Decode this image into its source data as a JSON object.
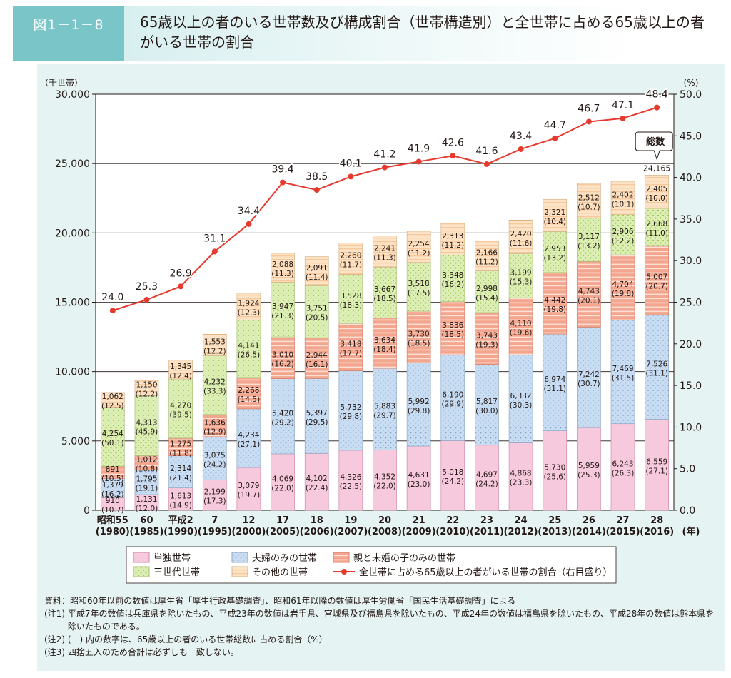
{
  "figure_label": "図1－1－8",
  "title": "65歳以上の者のいる世帯数及び構成割合（世帯構造別）と全世帯に占める65歳以上の者がいる世帯の割合",
  "chart_data": {
    "type": "bar",
    "stacked": true,
    "categories": [
      {
        "era": "昭和55",
        "year": "(1980)"
      },
      {
        "era": "60",
        "year": "(1985)"
      },
      {
        "era": "平成2",
        "year": "(1990)"
      },
      {
        "era": "7",
        "year": "(1995)"
      },
      {
        "era": "12",
        "year": "(2000)"
      },
      {
        "era": "17",
        "year": "(2005)"
      },
      {
        "era": "18",
        "year": "(2006)"
      },
      {
        "era": "19",
        "year": "(2007)"
      },
      {
        "era": "20",
        "year": "(2008)"
      },
      {
        "era": "21",
        "year": "(2009)"
      },
      {
        "era": "22",
        "year": "(2010)"
      },
      {
        "era": "23",
        "year": "(2011)"
      },
      {
        "era": "24",
        "year": "(2012)"
      },
      {
        "era": "25",
        "year": "(2013)"
      },
      {
        "era": "26",
        "year": "(2014)"
      },
      {
        "era": "27",
        "year": "(2015)"
      },
      {
        "era": "28",
        "year": "(2016)"
      }
    ],
    "x_unit": "(年)",
    "y_left": {
      "unit": "（千世帯）",
      "min": 0,
      "max": 30000,
      "ticks": [
        "0",
        "5,000",
        "10,000",
        "15,000",
        "20,000",
        "25,000",
        "30,000"
      ]
    },
    "y_right": {
      "unit": "(%)",
      "min": 0,
      "max": 50,
      "ticks": [
        "0.0",
        "5.0",
        "10.0",
        "15.0",
        "20.0",
        "25.0",
        "30.0",
        "35.0",
        "40.0",
        "45.0",
        "50.0"
      ]
    },
    "series": [
      {
        "name": "単独世帯",
        "color": "#f7c9dc",
        "pattern": "plain",
        "values": [
          910,
          1131,
          1613,
          2199,
          3079,
          4069,
          4102,
          4326,
          4352,
          4631,
          5018,
          4697,
          4868,
          5730,
          5959,
          6243,
          6559
        ],
        "labels": [
          "910",
          "1,131",
          "1,613",
          "2,199",
          "3,079",
          "4,069",
          "4,102",
          "4,326",
          "4,352",
          "4,631",
          "5,018",
          "4,697",
          "4,868",
          "5,730",
          "5,959",
          "6,243",
          "6,559"
        ],
        "shares": [
          "(10.7)",
          "(12.0)",
          "(14.9)",
          "(17.3)",
          "(19.7)",
          "(22.0)",
          "(22.4)",
          "(22.5)",
          "(22.0)",
          "(23.0)",
          "(24.2)",
          "(24.2)",
          "(23.3)",
          "(25.6)",
          "(25.3)",
          "(26.3)",
          "(27.1)"
        ]
      },
      {
        "name": "夫婦のみの世帯",
        "color": "#c9ddf2",
        "pattern": "dots",
        "values": [
          1379,
          1795,
          2314,
          3075,
          4234,
          5420,
          5397,
          5732,
          5883,
          5992,
          6190,
          5817,
          6332,
          6974,
          7242,
          7469,
          7526
        ],
        "labels": [
          "1,379",
          "1,795",
          "2,314",
          "3,075",
          "4,234",
          "5,420",
          "5,397",
          "5,732",
          "5,883",
          "5,992",
          "6,190",
          "5,817",
          "6,332",
          "6,974",
          "7,242",
          "7,469",
          "7,526"
        ],
        "shares": [
          "(16.2)",
          "(19.1)",
          "(21.4)",
          "(24.2)",
          "(27.1)",
          "(29.2)",
          "(29.5)",
          "(29.8)",
          "(29.7)",
          "(29.8)",
          "(29.9)",
          "(30.0)",
          "(30.3)",
          "(31.1)",
          "(30.7)",
          "(31.5)",
          "(31.1)"
        ]
      },
      {
        "name": "親と未婚の子のみの世帯",
        "color": "#f4a58d",
        "pattern": "stripes",
        "values": [
          891,
          1012,
          1275,
          1636,
          2268,
          3010,
          2944,
          3418,
          3634,
          3730,
          3836,
          3743,
          4110,
          4442,
          4743,
          4704,
          5007
        ],
        "labels": [
          "891",
          "1,012",
          "1,275",
          "1,636",
          "2,268",
          "3,010",
          "2,944",
          "3,418",
          "3,634",
          "3,730",
          "3,836",
          "3,743",
          "4,110",
          "4,442",
          "4,743",
          "4,704",
          "5,007"
        ],
        "shares": [
          "(10.5)",
          "(10.8)",
          "(11.8)",
          "(12.9)",
          "(14.5)",
          "(16.2)",
          "(16.1)",
          "(17.7)",
          "(18.4)",
          "(18.5)",
          "(18.5)",
          "(19.3)",
          "(19.6)",
          "(19.8)",
          "(20.1)",
          "(19.8)",
          "(20.7)"
        ]
      },
      {
        "name": "三世代世帯",
        "color": "#ddeeb5",
        "pattern": "dots-green",
        "values": [
          4254,
          4313,
          4270,
          4232,
          4141,
          3947,
          3751,
          3528,
          3667,
          3518,
          3348,
          2998,
          3199,
          2953,
          3117,
          2906,
          2668
        ],
        "labels": [
          "4,254",
          "4,313",
          "4,270",
          "4,232",
          "4,141",
          "3,947",
          "3,751",
          "3,528",
          "3,667",
          "3,518",
          "3,348",
          "2,998",
          "3,199",
          "2,953",
          "3,117",
          "2,906",
          "2,668"
        ],
        "shares": [
          "(50.1)",
          "(45.9)",
          "(39.5)",
          "(33.3)",
          "(26.5)",
          "(21.3)",
          "(20.5)",
          "(18.3)",
          "(18.5)",
          "(17.5)",
          "(16.2)",
          "(15.4)",
          "(15.3)",
          "(13.2)",
          "(13.2)",
          "(12.2)",
          "(11.0)"
        ]
      },
      {
        "name": "その他の世帯",
        "color": "#fde3c5",
        "pattern": "hlines",
        "values": [
          1062,
          1150,
          1345,
          1553,
          1924,
          2088,
          2091,
          2260,
          2241,
          2254,
          2313,
          2166,
          2420,
          2321,
          2512,
          2402,
          2405
        ],
        "labels": [
          "1,062",
          "1,150",
          "1,345",
          "1,553",
          "1,924",
          "2,088",
          "2,091",
          "2,260",
          "2,241",
          "2,254",
          "2,313",
          "2,166",
          "2,420",
          "2,321",
          "2,512",
          "2,402",
          "2,405"
        ],
        "shares": [
          "(12.5)",
          "(12.2)",
          "(12.4)",
          "(12.2)",
          "(12.3)",
          "(11.3)",
          "(11.4)",
          "(11.7)",
          "(11.3)",
          "(11.2)",
          "(11.2)",
          "(11.2)",
          "(11.6)",
          "(10.4)",
          "(10.7)",
          "(10.1)",
          "(10.0)"
        ]
      }
    ],
    "line": {
      "name": "全世帯に占める65歳以上の者がいる世帯の割合（右目盛り）",
      "color": "#e63a2e",
      "values": [
        24.0,
        25.3,
        26.9,
        31.1,
        34.4,
        39.4,
        38.5,
        40.1,
        41.2,
        41.9,
        42.6,
        41.6,
        43.4,
        44.7,
        46.7,
        47.1,
        48.4
      ],
      "labels": [
        "24.0",
        "25.3",
        "26.9",
        "31.1",
        "34.4",
        "39.4",
        "38.5",
        "40.1",
        "41.2",
        "41.9",
        "42.6",
        "41.6",
        "43.4",
        "44.7",
        "46.7",
        "47.1",
        "48.4"
      ]
    },
    "total_callout": {
      "label": "総数",
      "value": "24,165",
      "category_index": 16
    },
    "grid": true
  },
  "notes": [
    {
      "prefix": "資料：",
      "text": "昭和60年以前の数値は厚生省「厚生行政基礎調査」、昭和61年以降の数値は厚生労働省「国民生活基礎調査」による"
    },
    {
      "prefix": "(注1) ",
      "text": "平成7年の数値は兵庫県を除いたもの、平成23年の数値は岩手県、宮城県及び福島県を除いたもの、平成24年の数値は福島県を除いたもの、平成28年の数値は熊本県を除いたものである。"
    },
    {
      "prefix": "(注2) ",
      "text": "(　) 内の数字は、65歳以上の者のいる世帯総数に占める割合（%）"
    },
    {
      "prefix": "(注3) ",
      "text": "四捨五入のため合計は必ずしも一致しない。"
    }
  ]
}
